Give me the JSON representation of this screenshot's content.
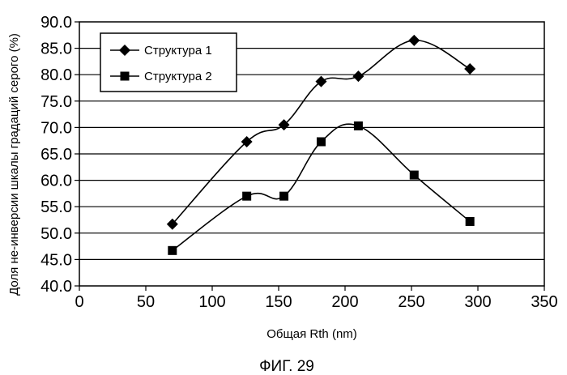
{
  "chart_data": {
    "type": "line",
    "xlabel": "Общая Rth (nm)",
    "ylabel": "Доля не-инверсии шкалы градаций серого (%)",
    "caption": "ФИГ. 29",
    "xlim": [
      0,
      350
    ],
    "ylim": [
      40,
      90
    ],
    "xticks": [
      "0",
      "50",
      "100",
      "150",
      "200",
      "250",
      "300",
      "350"
    ],
    "yticks": [
      "40.0",
      "45.0",
      "50.0",
      "55.0",
      "60.0",
      "65.0",
      "70.0",
      "75.0",
      "80.0",
      "85.0",
      "90.0"
    ],
    "grid": "horizontal",
    "legend_position": "top-left",
    "series": [
      {
        "name": "Структура 1",
        "marker": "diamond",
        "x": [
          70,
          126,
          154,
          182,
          210,
          252,
          294
        ],
        "y": [
          51.7,
          67.3,
          70.5,
          78.7,
          79.7,
          86.5,
          81.1
        ]
      },
      {
        "name": "Структура 2",
        "marker": "square",
        "x": [
          70,
          126,
          154,
          182,
          210,
          252,
          294
        ],
        "y": [
          46.7,
          57.0,
          57.0,
          67.3,
          70.3,
          61.0,
          52.2
        ]
      }
    ]
  }
}
